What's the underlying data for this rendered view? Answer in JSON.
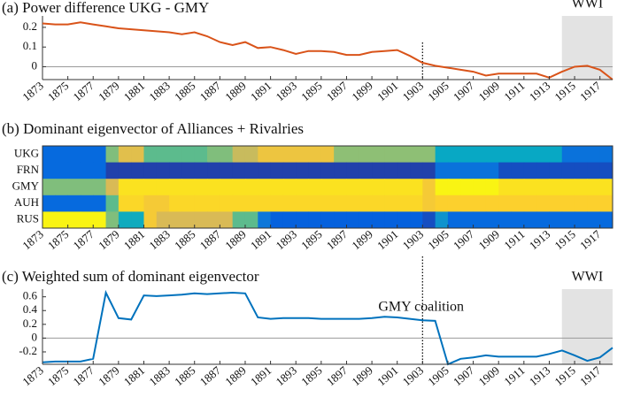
{
  "chart_data": [
    {
      "type": "line",
      "title": "(a)  Power difference UKG - GMY",
      "color": "#d95319",
      "x": [
        1873,
        1874,
        1875,
        1876,
        1877,
        1878,
        1879,
        1880,
        1881,
        1882,
        1883,
        1884,
        1885,
        1886,
        1887,
        1888,
        1889,
        1890,
        1891,
        1892,
        1893,
        1894,
        1895,
        1896,
        1897,
        1898,
        1899,
        1900,
        1901,
        1902,
        1903,
        1904,
        1905,
        1906,
        1907,
        1908,
        1909,
        1910,
        1911,
        1912,
        1913,
        1914,
        1915,
        1916,
        1917,
        1918
      ],
      "values": [
        0.22,
        0.215,
        0.215,
        0.225,
        0.215,
        0.205,
        0.195,
        0.19,
        0.185,
        0.18,
        0.175,
        0.165,
        0.175,
        0.155,
        0.125,
        0.11,
        0.125,
        0.095,
        0.1,
        0.085,
        0.065,
        0.08,
        0.08,
        0.075,
        0.06,
        0.06,
        0.075,
        0.08,
        0.085,
        0.055,
        0.02,
        0.005,
        -0.005,
        -0.015,
        -0.025,
        -0.045,
        -0.035,
        -0.035,
        -0.035,
        -0.035,
        -0.055,
        -0.025,
        0.0,
        0.005,
        -0.015,
        -0.065
      ],
      "xlim": [
        1873,
        1918
      ],
      "xticks": [
        1873,
        1875,
        1877,
        1879,
        1881,
        1883,
        1885,
        1887,
        1889,
        1891,
        1893,
        1895,
        1897,
        1899,
        1901,
        1903,
        1905,
        1907,
        1909,
        1911,
        1913,
        1915,
        1917
      ],
      "ylim": [
        -0.065,
        0.24
      ],
      "yticks": [
        0,
        0.1,
        0.2
      ],
      "shade": [
        1914,
        1918
      ],
      "shade_label": "WWI",
      "vline": 1903
    },
    {
      "type": "heatmap",
      "title": "(b)  Dominant eigenvector of Alliances + Rivalries",
      "colormap": "parula",
      "rows": [
        "UKG",
        "FRN",
        "GMY",
        "AUH",
        "RUS"
      ],
      "xlim": [
        1873,
        1918
      ],
      "xticks": [
        1873,
        1875,
        1877,
        1879,
        1881,
        1883,
        1885,
        1887,
        1889,
        1891,
        1893,
        1895,
        1897,
        1899,
        1901,
        1903,
        1905,
        1907,
        1909,
        1911,
        1913,
        1915,
        1917
      ],
      "z": [
        [
          0.15,
          0.15,
          0.15,
          0.15,
          0.15,
          0.6,
          0.78,
          0.78,
          0.55,
          0.55,
          0.55,
          0.55,
          0.55,
          0.6,
          0.6,
          0.72,
          0.72,
          0.82,
          0.82,
          0.82,
          0.82,
          0.82,
          0.82,
          0.62,
          0.62,
          0.62,
          0.62,
          0.62,
          0.62,
          0.62,
          0.62,
          0.38,
          0.38,
          0.38,
          0.38,
          0.38,
          0.38,
          0.38,
          0.38,
          0.38,
          0.38,
          0.18,
          0.18,
          0.18,
          0.18
        ],
        [
          0.15,
          0.15,
          0.15,
          0.15,
          0.15,
          0.05,
          0.05,
          0.05,
          0.05,
          0.05,
          0.05,
          0.05,
          0.05,
          0.05,
          0.05,
          0.05,
          0.05,
          0.05,
          0.05,
          0.05,
          0.05,
          0.05,
          0.05,
          0.05,
          0.05,
          0.05,
          0.05,
          0.05,
          0.05,
          0.05,
          0.05,
          0.18,
          0.18,
          0.18,
          0.18,
          0.18,
          0.08,
          0.08,
          0.08,
          0.08,
          0.08,
          0.08,
          0.08,
          0.08,
          0.08
        ],
        [
          0.6,
          0.6,
          0.6,
          0.6,
          0.6,
          0.75,
          0.93,
          0.93,
          0.93,
          0.93,
          0.93,
          0.93,
          0.93,
          0.93,
          0.93,
          0.93,
          0.93,
          0.93,
          0.93,
          0.93,
          0.93,
          0.93,
          0.93,
          0.93,
          0.93,
          0.93,
          0.93,
          0.93,
          0.93,
          0.93,
          0.85,
          0.98,
          0.98,
          0.98,
          0.98,
          0.98,
          0.93,
          0.93,
          0.93,
          0.93,
          0.93,
          0.93,
          0.93,
          0.93,
          0.93
        ],
        [
          0.15,
          0.15,
          0.15,
          0.15,
          0.15,
          0.55,
          0.9,
          0.9,
          0.85,
          0.85,
          0.9,
          0.9,
          0.9,
          0.9,
          0.9,
          0.9,
          0.9,
          0.9,
          0.9,
          0.9,
          0.9,
          0.9,
          0.9,
          0.9,
          0.9,
          0.9,
          0.9,
          0.9,
          0.9,
          0.9,
          0.85,
          0.88,
          0.88,
          0.88,
          0.88,
          0.88,
          0.88,
          0.88,
          0.88,
          0.88,
          0.88,
          0.88,
          0.88,
          0.88,
          0.88
        ],
        [
          0.98,
          0.98,
          0.98,
          0.98,
          0.98,
          0.6,
          0.4,
          0.4,
          0.85,
          0.75,
          0.75,
          0.75,
          0.75,
          0.75,
          0.75,
          0.55,
          0.55,
          0.2,
          0.12,
          0.12,
          0.12,
          0.12,
          0.12,
          0.12,
          0.12,
          0.12,
          0.12,
          0.12,
          0.12,
          0.12,
          0.08,
          0.3,
          0.15,
          0.15,
          0.15,
          0.15,
          0.15,
          0.15,
          0.15,
          0.15,
          0.15,
          0.15,
          0.15,
          0.15,
          0.15
        ]
      ]
    },
    {
      "type": "line",
      "title": "(c)  Weighted sum of dominant eigenvector",
      "color": "#0072bd",
      "x": [
        1873,
        1874,
        1875,
        1876,
        1877,
        1878,
        1879,
        1880,
        1881,
        1882,
        1883,
        1884,
        1885,
        1886,
        1887,
        1888,
        1889,
        1890,
        1891,
        1892,
        1893,
        1894,
        1895,
        1896,
        1897,
        1898,
        1899,
        1900,
        1901,
        1902,
        1903,
        1904,
        1905,
        1906,
        1907,
        1908,
        1909,
        1910,
        1911,
        1912,
        1913,
        1914,
        1915,
        1916,
        1917,
        1918
      ],
      "values": [
        -0.35,
        -0.34,
        -0.34,
        -0.34,
        -0.3,
        0.66,
        0.29,
        0.27,
        0.62,
        0.61,
        0.62,
        0.63,
        0.65,
        0.64,
        0.65,
        0.66,
        0.65,
        0.3,
        0.28,
        0.29,
        0.29,
        0.29,
        0.28,
        0.28,
        0.28,
        0.28,
        0.29,
        0.31,
        0.3,
        0.28,
        0.26,
        0.25,
        -0.38,
        -0.3,
        -0.28,
        -0.25,
        -0.27,
        -0.27,
        -0.27,
        -0.27,
        -0.23,
        -0.18,
        -0.25,
        -0.33,
        -0.28,
        -0.14
      ],
      "xlim": [
        1873,
        1918
      ],
      "xticks": [
        1873,
        1875,
        1877,
        1879,
        1881,
        1883,
        1885,
        1887,
        1889,
        1891,
        1893,
        1895,
        1897,
        1899,
        1901,
        1903,
        1905,
        1907,
        1909,
        1911,
        1913,
        1915,
        1917
      ],
      "ylim": [
        -0.38,
        0.66
      ],
      "yticks": [
        -0.2,
        0,
        0.2,
        0.4,
        0.6
      ],
      "shade": [
        1914,
        1918
      ],
      "shade_label": "WWI",
      "vline": 1903,
      "annotation": "GMY coalition"
    }
  ]
}
